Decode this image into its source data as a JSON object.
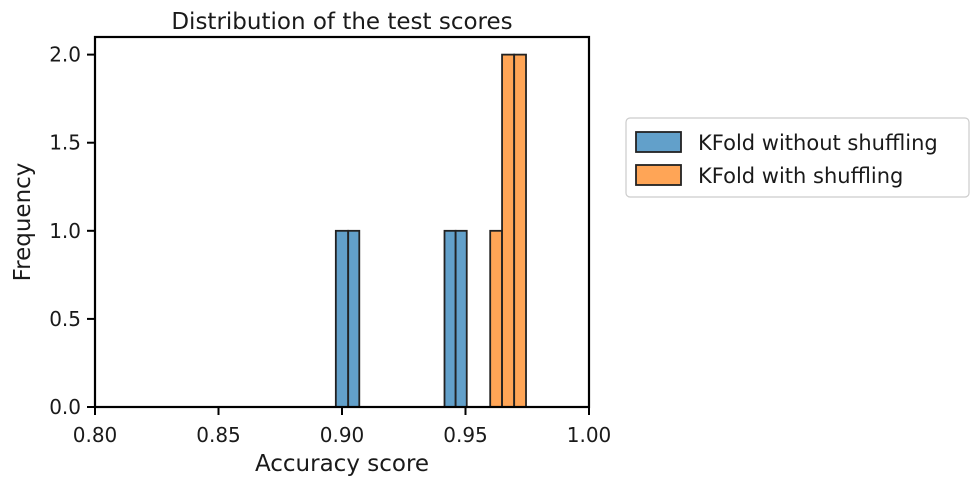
{
  "chart_data": {
    "type": "histogram",
    "title": "Distribution of the test scores",
    "xlabel": "Accuracy score",
    "ylabel": "Frequency",
    "xlim": [
      0.8,
      1.0
    ],
    "ylim": [
      0,
      2.1
    ],
    "xticks": [
      0.8,
      0.85,
      0.9,
      0.95,
      1.0
    ],
    "xtick_labels": [
      "0.80",
      "0.85",
      "0.90",
      "0.95",
      "1.00"
    ],
    "yticks": [
      0,
      0.5,
      1.0,
      1.5,
      2.0
    ],
    "ytick_labels": [
      "0.0",
      "0.5",
      "1.0",
      "1.5",
      "2.0"
    ],
    "grid": false,
    "legend_position": "outside-right",
    "series": [
      {
        "name": "KFold without shuffling",
        "color": "#1f77b4",
        "bins": [
          {
            "x0": 0.8975,
            "x1": 0.9025,
            "count": 1
          },
          {
            "x0": 0.9025,
            "x1": 0.907,
            "count": 1
          },
          {
            "x0": 0.9415,
            "x1": 0.946,
            "count": 1
          },
          {
            "x0": 0.946,
            "x1": 0.9505,
            "count": 1
          }
        ]
      },
      {
        "name": "KFold with shuffling",
        "color": "#ff7f0e",
        "bins": [
          {
            "x0": 0.96,
            "x1": 0.9648,
            "count": 1
          },
          {
            "x0": 0.9648,
            "x1": 0.9697,
            "count": 2
          },
          {
            "x0": 0.9697,
            "x1": 0.9745,
            "count": 2
          }
        ]
      }
    ]
  }
}
